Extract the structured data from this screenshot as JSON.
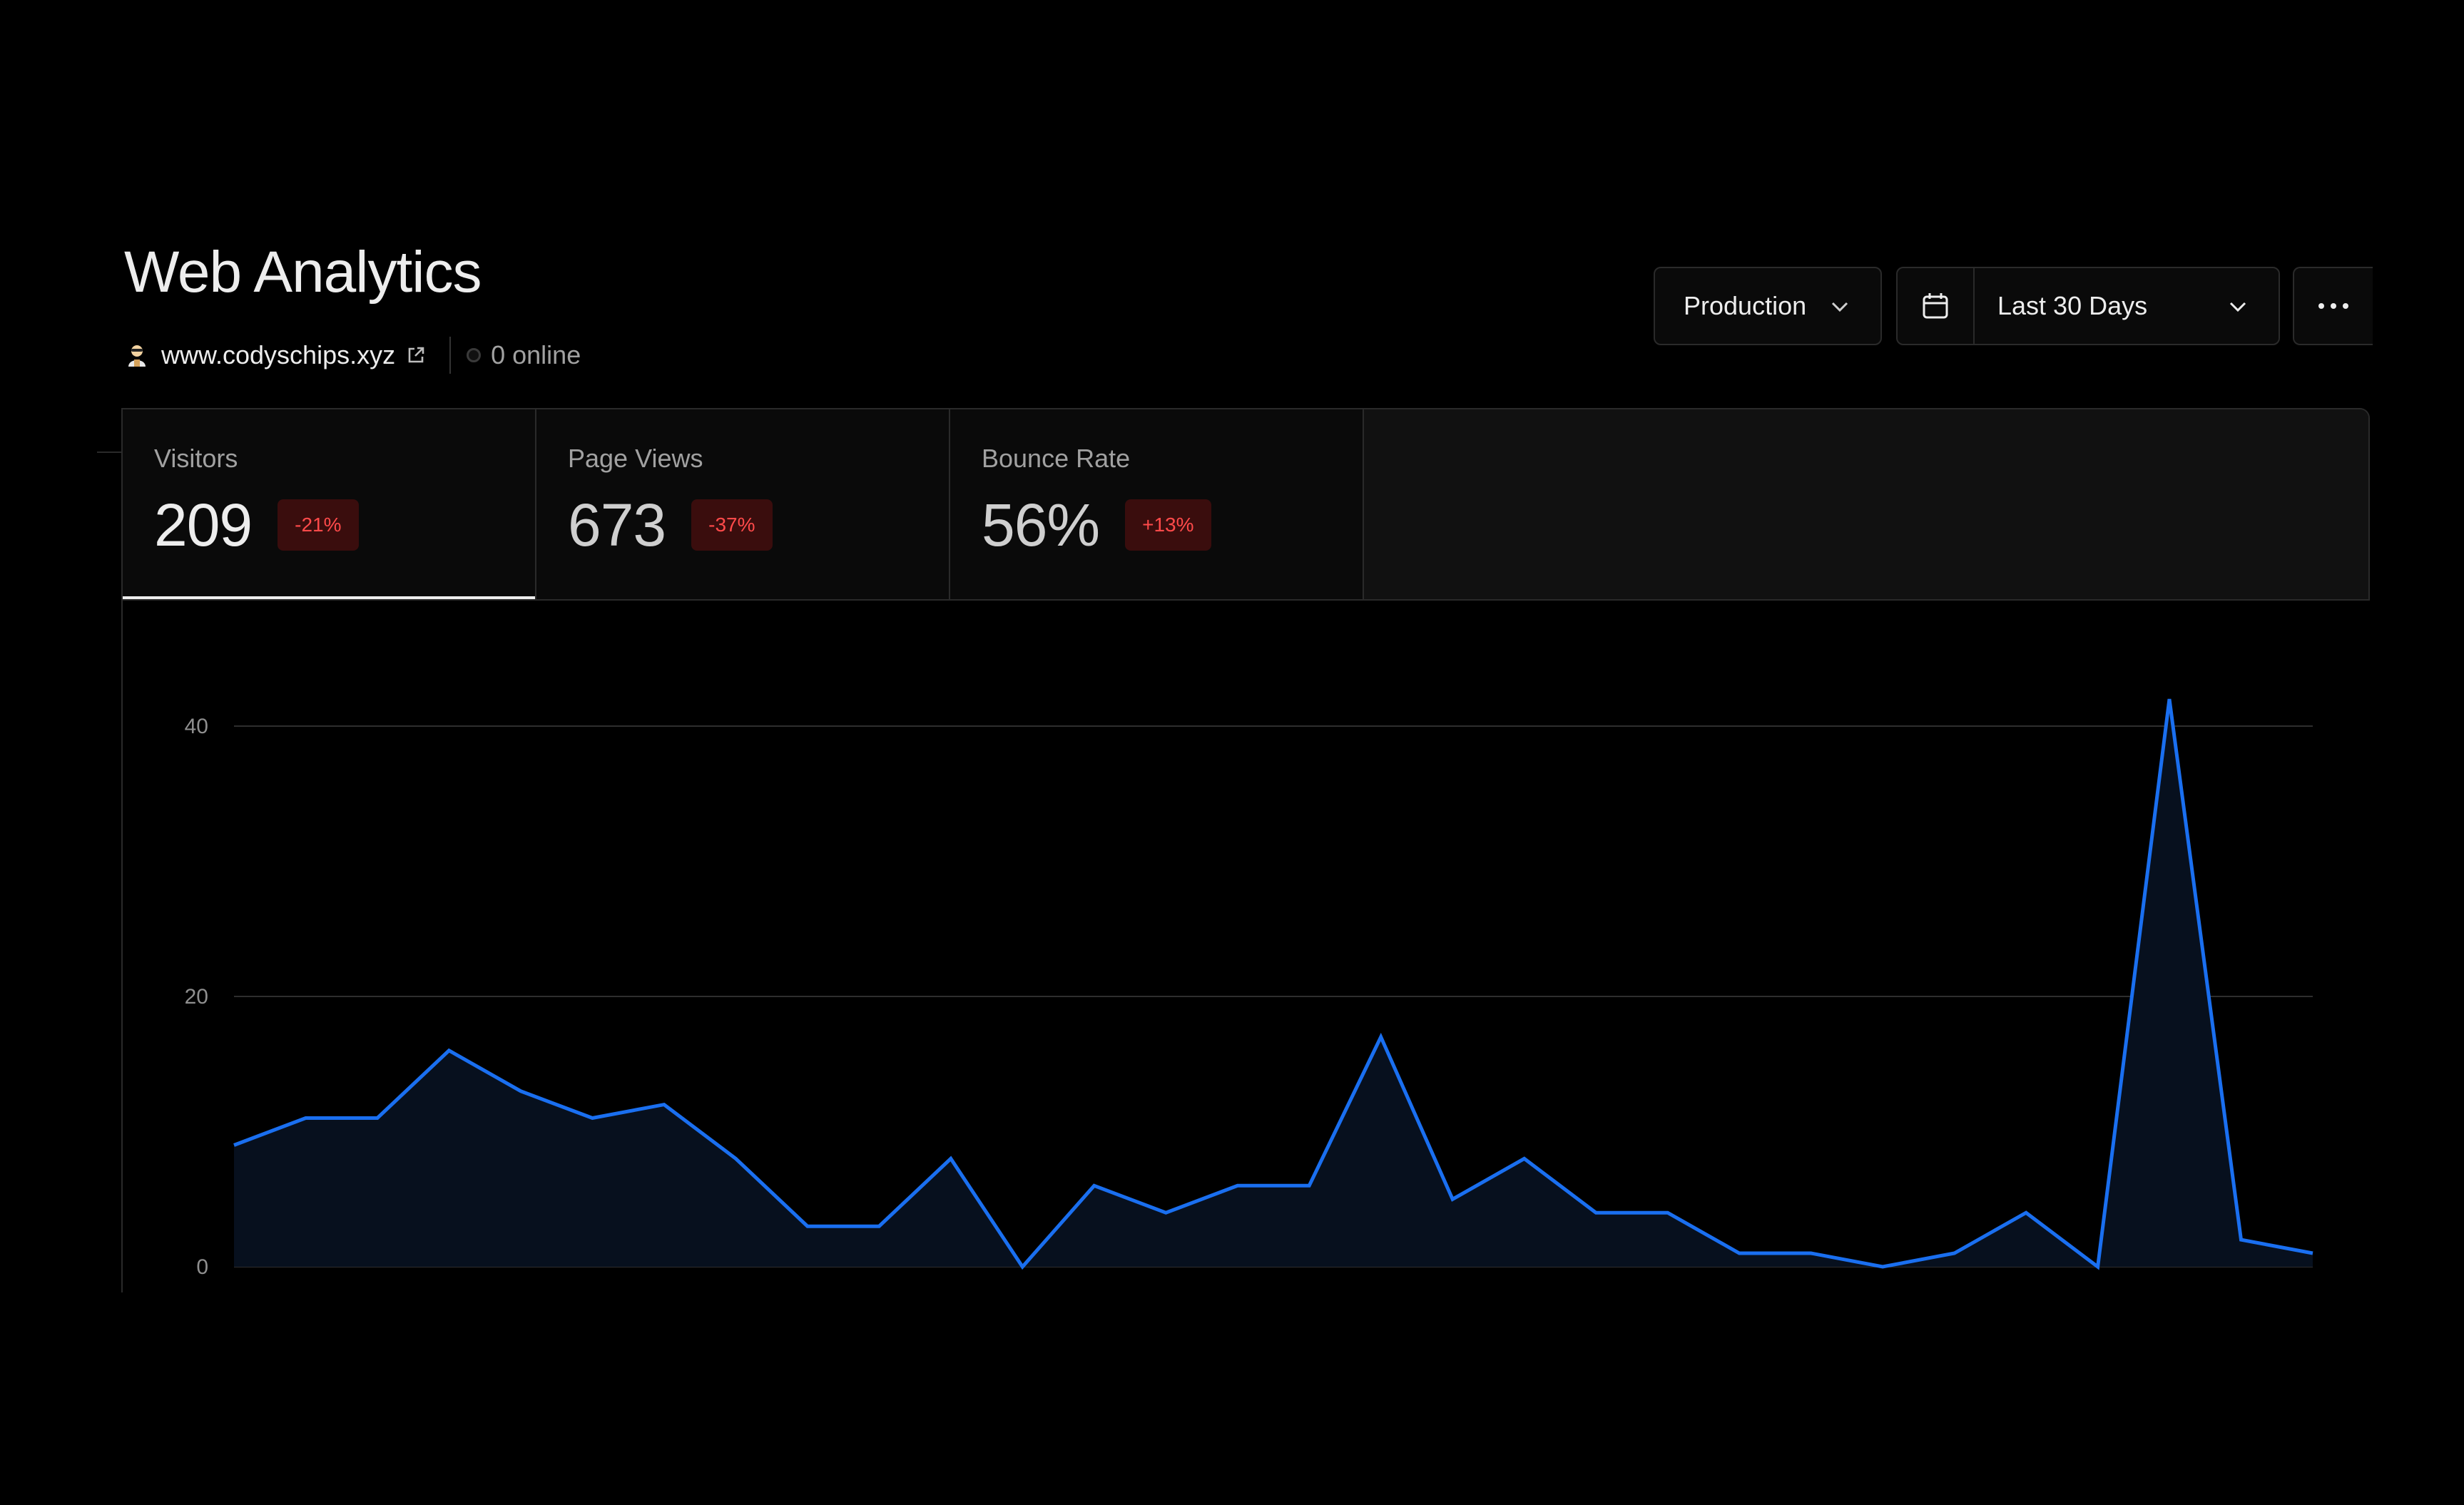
{
  "header": {
    "title": "Web Analytics",
    "site": "www.codyschips.xyz",
    "online": "0 online"
  },
  "controls": {
    "environment": "Production",
    "date_range": "Last 30 Days"
  },
  "metrics": [
    {
      "label": "Visitors",
      "value": "209",
      "change": "-21%",
      "active": true
    },
    {
      "label": "Page Views",
      "value": "673",
      "change": "-37%",
      "active": false
    },
    {
      "label": "Bounce Rate",
      "value": "56%",
      "change": "+13%",
      "active": false
    }
  ],
  "colors": {
    "line": "#1a6ff0",
    "fill": "#07101e",
    "badge_bg": "#3a0d0d",
    "badge_text": "#ff4a4a"
  },
  "chart_data": {
    "type": "area",
    "series": [
      {
        "values": [
          9,
          11,
          11,
          16,
          13,
          11,
          12,
          8,
          3,
          3,
          8,
          0,
          6,
          4,
          6,
          6,
          17,
          5,
          8,
          4,
          4,
          1,
          1,
          0,
          1,
          4,
          0,
          42,
          2,
          1
        ]
      }
    ],
    "y_ticks": [
      "0",
      "20",
      "40"
    ],
    "ylim": [
      0,
      40
    ],
    "grid": true
  }
}
